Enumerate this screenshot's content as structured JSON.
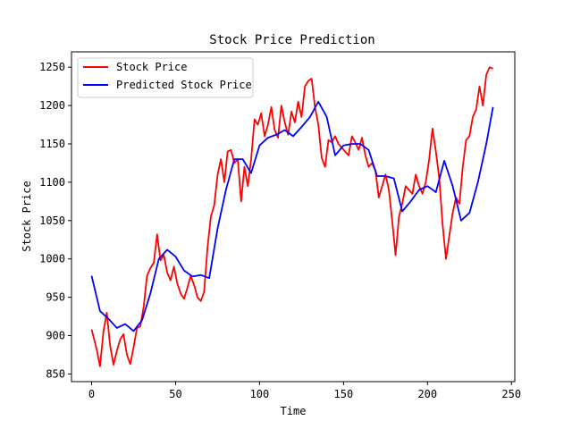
{
  "chart_data": {
    "type": "line",
    "title": "Stock Price Prediction",
    "xlabel": "Time",
    "ylabel": "Stock Price",
    "xlim": [
      -12,
      252
    ],
    "ylim": [
      840,
      1270
    ],
    "xticks": [
      0,
      50,
      100,
      150,
      200,
      250
    ],
    "yticks": [
      850,
      900,
      950,
      1000,
      1050,
      1100,
      1150,
      1200,
      1250
    ],
    "legend_position": "upper-left",
    "grid": false,
    "series": [
      {
        "name": "Stock Price",
        "color": "#ff0000",
        "x": [
          0,
          3,
          5,
          7,
          9,
          11,
          13,
          15,
          17,
          19,
          21,
          23,
          25,
          27,
          29,
          31,
          33,
          35,
          37,
          39,
          41,
          43,
          45,
          47,
          49,
          51,
          53,
          55,
          57,
          59,
          61,
          63,
          65,
          67,
          69,
          71,
          73,
          75,
          77,
          79,
          81,
          83,
          85,
          87,
          89,
          91,
          93,
          95,
          97,
          99,
          101,
          103,
          105,
          107,
          109,
          111,
          113,
          115,
          117,
          119,
          121,
          123,
          125,
          127,
          129,
          131,
          133,
          135,
          137,
          139,
          141,
          143,
          145,
          147,
          149,
          151,
          153,
          155,
          157,
          159,
          161,
          163,
          165,
          167,
          169,
          171,
          173,
          175,
          177,
          179,
          181,
          183,
          185,
          187,
          189,
          191,
          193,
          195,
          197,
          199,
          201,
          203,
          205,
          207,
          209,
          211,
          213,
          215,
          217,
          219,
          221,
          223,
          225,
          227,
          229,
          231,
          233,
          235,
          237,
          239
        ],
        "y": [
          908,
          882,
          860,
          905,
          930,
          887,
          862,
          880,
          895,
          902,
          875,
          863,
          885,
          910,
          912,
          938,
          978,
          988,
          995,
          1032,
          998,
          1005,
          982,
          972,
          990,
          968,
          955,
          948,
          962,
          978,
          966,
          950,
          945,
          957,
          1015,
          1055,
          1070,
          1110,
          1130,
          1100,
          1140,
          1142,
          1125,
          1130,
          1075,
          1120,
          1095,
          1130,
          1182,
          1175,
          1190,
          1160,
          1175,
          1198,
          1168,
          1158,
          1200,
          1178,
          1162,
          1192,
          1178,
          1205,
          1185,
          1225,
          1232,
          1235,
          1198,
          1175,
          1132,
          1120,
          1155,
          1152,
          1160,
          1150,
          1145,
          1140,
          1135,
          1160,
          1152,
          1142,
          1158,
          1135,
          1120,
          1125,
          1115,
          1080,
          1095,
          1110,
          1090,
          1050,
          1005,
          1055,
          1072,
          1095,
          1090,
          1085,
          1110,
          1095,
          1085,
          1100,
          1130,
          1170,
          1140,
          1105,
          1045,
          1000,
          1030,
          1060,
          1080,
          1072,
          1120,
          1155,
          1160,
          1185,
          1195,
          1225,
          1200,
          1240,
          1250,
          1248
        ]
      },
      {
        "name": "Predicted Stock Price",
        "color": "#0000ff",
        "x": [
          0,
          5,
          10,
          15,
          20,
          25,
          30,
          35,
          40,
          45,
          50,
          55,
          60,
          65,
          70,
          75,
          80,
          85,
          90,
          95,
          100,
          105,
          110,
          115,
          120,
          125,
          130,
          135,
          140,
          145,
          150,
          155,
          160,
          165,
          170,
          175,
          180,
          185,
          190,
          195,
          200,
          205,
          210,
          215,
          220,
          225,
          230,
          235,
          239
        ],
        "y": [
          978,
          932,
          922,
          910,
          915,
          906,
          920,
          955,
          1000,
          1012,
          1003,
          985,
          977,
          979,
          975,
          1040,
          1090,
          1130,
          1130,
          1112,
          1148,
          1158,
          1162,
          1168,
          1160,
          1172,
          1185,
          1205,
          1185,
          1135,
          1148,
          1150,
          1150,
          1142,
          1108,
          1108,
          1105,
          1062,
          1075,
          1090,
          1095,
          1087,
          1128,
          1095,
          1050,
          1060,
          1100,
          1150,
          1198
        ]
      }
    ]
  }
}
